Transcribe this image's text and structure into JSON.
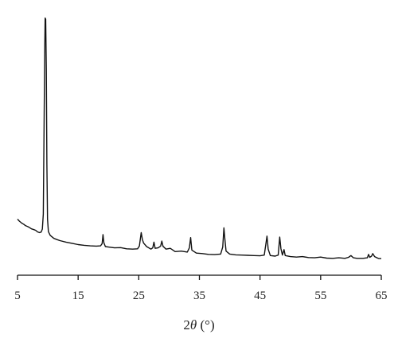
{
  "chart_data": {
    "type": "line",
    "title": "",
    "xlabel": {
      "prefix": "2",
      "symbol": "θ",
      "unit": " (°)"
    },
    "ylabel": "",
    "xlim": [
      5,
      65
    ],
    "ylim": [
      0,
      100
    ],
    "x_ticks": [
      5,
      15,
      25,
      35,
      45,
      55,
      65
    ],
    "x_tick_labels": [
      "5",
      "15",
      "25",
      "35",
      "45",
      "55",
      "65"
    ],
    "y_axis_shown": false,
    "grid": false,
    "legend": "none",
    "line_color": "#111111",
    "series": [
      {
        "points": [
          [
            5.0,
            18.0
          ],
          [
            5.3,
            17.2
          ],
          [
            5.7,
            16.4
          ],
          [
            6.0,
            16.0
          ],
          [
            6.3,
            15.4
          ],
          [
            6.7,
            15.0
          ],
          [
            7.0,
            14.6
          ],
          [
            7.3,
            14.1
          ],
          [
            7.7,
            13.8
          ],
          [
            8.0,
            13.5
          ],
          [
            8.3,
            12.9
          ],
          [
            8.6,
            12.6
          ],
          [
            8.9,
            12.8
          ],
          [
            9.1,
            14.0
          ],
          [
            9.25,
            20.0
          ],
          [
            9.4,
            60.0
          ],
          [
            9.5,
            88.0
          ],
          [
            9.55,
            98.5
          ],
          [
            9.65,
            98.0
          ],
          [
            9.75,
            78.0
          ],
          [
            9.85,
            40.0
          ],
          [
            9.95,
            18.0
          ],
          [
            10.1,
            13.0
          ],
          [
            10.4,
            11.5
          ],
          [
            11.0,
            10.3
          ],
          [
            11.5,
            9.8
          ],
          [
            12.0,
            9.4
          ],
          [
            13.0,
            8.8
          ],
          [
            14.0,
            8.3
          ],
          [
            15.0,
            7.8
          ],
          [
            16.0,
            7.5
          ],
          [
            17.0,
            7.3
          ],
          [
            18.0,
            7.2
          ],
          [
            18.7,
            7.3
          ],
          [
            18.95,
            8.2
          ],
          [
            19.1,
            11.8
          ],
          [
            19.25,
            8.5
          ],
          [
            19.5,
            7.0
          ],
          [
            20.0,
            6.8
          ],
          [
            21.0,
            6.5
          ],
          [
            22.0,
            6.6
          ],
          [
            23.0,
            6.1
          ],
          [
            24.0,
            6.0
          ],
          [
            24.8,
            6.1
          ],
          [
            25.1,
            7.2
          ],
          [
            25.4,
            12.6
          ],
          [
            25.6,
            9.8
          ],
          [
            25.8,
            8.4
          ],
          [
            26.3,
            7.0
          ],
          [
            27.0,
            6.0
          ],
          [
            27.3,
            6.5
          ],
          [
            27.5,
            8.8
          ],
          [
            27.7,
            6.3
          ],
          [
            28.2,
            6.5
          ],
          [
            28.6,
            7.2
          ],
          [
            28.8,
            9.2
          ],
          [
            29.0,
            7.1
          ],
          [
            29.5,
            6.0
          ],
          [
            30.2,
            6.3
          ],
          [
            31.0,
            5.0
          ],
          [
            32.0,
            5.2
          ],
          [
            33.0,
            4.8
          ],
          [
            33.35,
            6.5
          ],
          [
            33.55,
            10.6
          ],
          [
            33.75,
            5.6
          ],
          [
            34.5,
            4.4
          ],
          [
            35.5,
            4.2
          ],
          [
            36.5,
            3.9
          ],
          [
            37.5,
            3.8
          ],
          [
            38.5,
            4.0
          ],
          [
            38.85,
            6.8
          ],
          [
            39.05,
            14.5
          ],
          [
            39.2,
            10.0
          ],
          [
            39.4,
            5.2
          ],
          [
            40.0,
            4.0
          ],
          [
            41.0,
            3.7
          ],
          [
            42.0,
            3.6
          ],
          [
            43.0,
            3.5
          ],
          [
            44.0,
            3.4
          ],
          [
            45.0,
            3.3
          ],
          [
            45.7,
            3.6
          ],
          [
            45.95,
            7.8
          ],
          [
            46.15,
            11.2
          ],
          [
            46.35,
            6.0
          ],
          [
            46.7,
            3.4
          ],
          [
            47.5,
            3.2
          ],
          [
            48.0,
            3.6
          ],
          [
            48.25,
            10.8
          ],
          [
            48.45,
            6.2
          ],
          [
            48.7,
            3.6
          ],
          [
            48.95,
            5.8
          ],
          [
            49.15,
            3.4
          ],
          [
            50.0,
            3.0
          ],
          [
            51.0,
            2.8
          ],
          [
            52.0,
            3.0
          ],
          [
            53.0,
            2.6
          ],
          [
            54.0,
            2.5
          ],
          [
            55.0,
            2.8
          ],
          [
            56.0,
            2.4
          ],
          [
            57.0,
            2.3
          ],
          [
            58.0,
            2.5
          ],
          [
            59.0,
            2.3
          ],
          [
            59.6,
            2.7
          ],
          [
            60.0,
            3.4
          ],
          [
            60.4,
            2.5
          ],
          [
            61.0,
            2.3
          ],
          [
            62.0,
            2.3
          ],
          [
            62.7,
            2.5
          ],
          [
            62.9,
            3.9
          ],
          [
            63.1,
            2.7
          ],
          [
            63.4,
            3.2
          ],
          [
            63.6,
            4.2
          ],
          [
            63.9,
            3.0
          ],
          [
            64.2,
            2.6
          ],
          [
            64.6,
            2.2
          ],
          [
            65.0,
            2.2
          ]
        ]
      }
    ]
  }
}
